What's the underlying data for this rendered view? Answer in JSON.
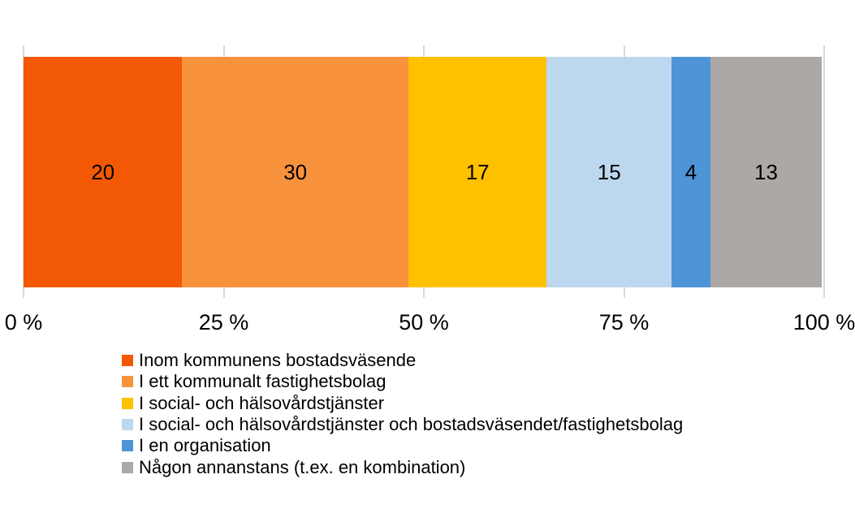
{
  "chart_data": {
    "type": "bar",
    "variant": "horizontal-stacked-100",
    "title": "",
    "segments": [
      {
        "label": "Inom kommunens bostadsväsende",
        "value": 20,
        "color": "#F35905"
      },
      {
        "label": "I ett kommunalt fastighetsbolag",
        "value": 30,
        "color": "#F9923C"
      },
      {
        "label": "I social- och hälsovårdstjänster",
        "value": 17,
        "color": "#FFC000"
      },
      {
        "label": "I social- och hälsovårdstjänster och bostadsväsendet/fastighetsbolag",
        "value": 15,
        "color": "#BDD7EE"
      },
      {
        "label": "I en organisation",
        "value": 4,
        "color": "#4E95D8"
      },
      {
        "label": "Någon annanstans (t.ex. en kombination)",
        "value": 13,
        "color": "#ACA8A5"
      }
    ],
    "x_axis": {
      "range": [
        0,
        100
      ],
      "tick_values": [
        0,
        25,
        50,
        75,
        100
      ],
      "tick_labels": [
        "0 %",
        "25 %",
        "50 %",
        "75 %",
        "100 %"
      ]
    },
    "grid": true,
    "legend_position": "bottom-left"
  },
  "colors": {
    "gridline": "#D9D9D9",
    "text": "#000000",
    "background": "#FFFFFF"
  }
}
